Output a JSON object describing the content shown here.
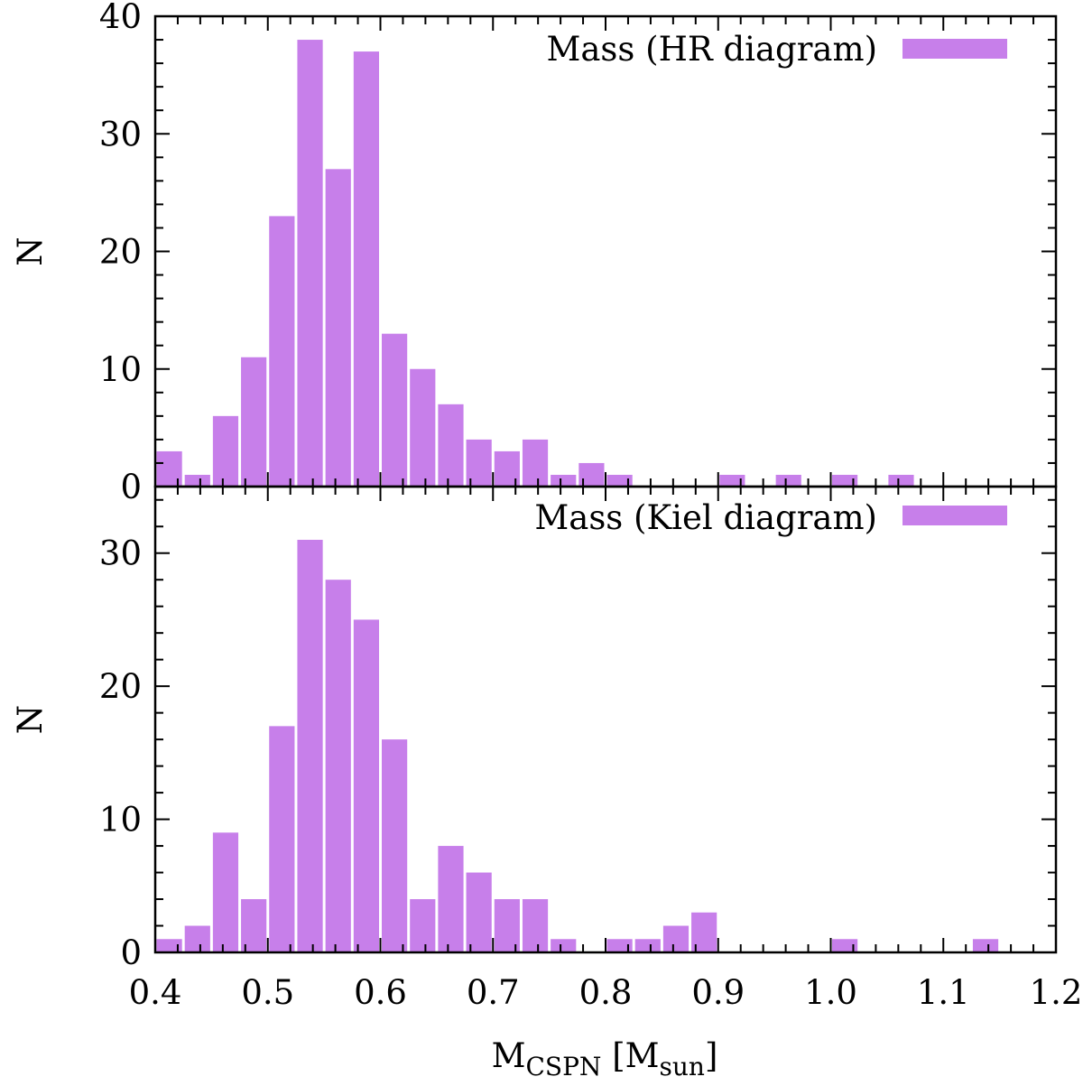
{
  "chart_data": [
    {
      "type": "bar",
      "panel": "top",
      "legend": "Mass (HR diagram)",
      "legend_position": "top-right",
      "ylabel": "N",
      "xlim": [
        0.4,
        1.2
      ],
      "ylim": [
        0,
        40
      ],
      "yticks": [
        0,
        10,
        20,
        30,
        40
      ],
      "bin_width": 0.025,
      "bin_centers": [
        0.4125,
        0.4375,
        0.4625,
        0.4875,
        0.5125,
        0.5375,
        0.5625,
        0.5875,
        0.6125,
        0.6375,
        0.6625,
        0.6875,
        0.7125,
        0.7375,
        0.7625,
        0.7875,
        0.8125,
        0.9125,
        0.9625,
        1.0125,
        1.0625
      ],
      "values": [
        3,
        1,
        6,
        11,
        23,
        38,
        27,
        37,
        13,
        10,
        7,
        4,
        3,
        4,
        1,
        2,
        1,
        1,
        1,
        1,
        1
      ]
    },
    {
      "type": "bar",
      "panel": "bottom",
      "legend": "Mass (Kiel diagram)",
      "legend_position": "top-right",
      "ylabel": "N",
      "xlabel": "M_CSPN [M_sun]",
      "xlabel_main": "M",
      "xlabel_sub": "CSPN",
      "xlabel_mid": " [M",
      "xlabel_sub2": "sun",
      "xlabel_end": "]",
      "xlim": [
        0.4,
        1.2
      ],
      "ylim": [
        0,
        35
      ],
      "yticks": [
        0,
        10,
        20,
        30
      ],
      "xticks": [
        0.4,
        0.5,
        0.6,
        0.7,
        0.8,
        0.9,
        1.0,
        1.1,
        1.2
      ],
      "xtick_labels": [
        "0.4",
        "0.5",
        "0.6",
        "0.7",
        "0.8",
        "0.9",
        "1.0",
        "1.1",
        "1.2"
      ],
      "bin_width": 0.025,
      "bin_centers": [
        0.4125,
        0.4375,
        0.4625,
        0.4875,
        0.5125,
        0.5375,
        0.5625,
        0.5875,
        0.6125,
        0.6375,
        0.6625,
        0.6875,
        0.7125,
        0.7375,
        0.7625,
        0.8125,
        0.8375,
        0.8625,
        0.8875,
        1.0125,
        1.1375
      ],
      "values": [
        1,
        2,
        9,
        4,
        17,
        31,
        28,
        25,
        16,
        4,
        8,
        6,
        4,
        4,
        1,
        1,
        1,
        2,
        3,
        1,
        1
      ]
    }
  ],
  "colors": {
    "bar": "#c77fea",
    "axis": "#000000"
  }
}
